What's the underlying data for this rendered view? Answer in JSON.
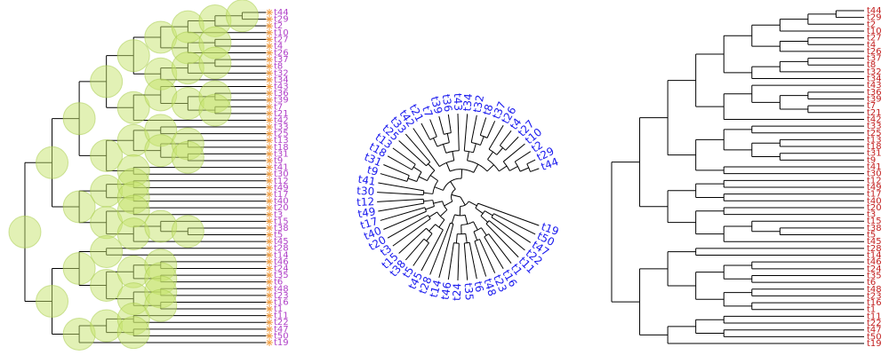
{
  "panel_left": {
    "tip_color": "#b041c8",
    "node_color": "#c5e36b",
    "star_color": "#f2a24a",
    "tips": [
      "t44",
      "t29",
      "t2",
      "t10",
      "t27",
      "t4",
      "t26",
      "t37",
      "t8",
      "t32",
      "t34",
      "t43",
      "t36",
      "t39",
      "t7",
      "t21",
      "t42",
      "t33",
      "t25",
      "t13",
      "t18",
      "t31",
      "t9",
      "t41",
      "t30",
      "t12",
      "t49",
      "t17",
      "t40",
      "t20",
      "t3",
      "t15",
      "t38",
      "t5",
      "t45",
      "t28",
      "t14",
      "t46",
      "t24",
      "t35",
      "t6",
      "t48",
      "t23",
      "t16",
      "t1",
      "t11",
      "t22",
      "t47",
      "t50",
      "t19"
    ]
  },
  "panel_middle": {
    "tip_color": "#1a1aee",
    "tips": [
      "t44",
      "t29",
      "t2",
      "t10",
      "t27",
      "t4",
      "t26",
      "t37",
      "t8",
      "t32",
      "t34",
      "t43",
      "t36",
      "t39",
      "t7",
      "t21",
      "t42",
      "t33",
      "t25",
      "t13",
      "t18",
      "t31",
      "t9",
      "t41",
      "t30",
      "t12",
      "t49",
      "t17",
      "t40",
      "t20",
      "t3",
      "t15",
      "t38",
      "t5",
      "t45",
      "t28",
      "t14",
      "t46",
      "t24",
      "t35",
      "t6",
      "t48",
      "t23",
      "t16",
      "t1",
      "t11",
      "t22",
      "t47",
      "t50",
      "t19"
    ]
  },
  "panel_right": {
    "tip_color": "#c21f1f",
    "tips": [
      "t44",
      "t29",
      "t2",
      "t10",
      "t27",
      "t4",
      "t26",
      "t37",
      "t8",
      "t32",
      "t34",
      "t43",
      "t36",
      "t39",
      "t7",
      "t21",
      "t42",
      "t33",
      "t25",
      "t13",
      "t18",
      "t31",
      "t9",
      "t41",
      "t30",
      "t12",
      "t49",
      "t17",
      "t40",
      "t20",
      "t3",
      "t15",
      "t38",
      "t5",
      "t45",
      "t28",
      "t14",
      "t46",
      "t24",
      "t35",
      "t6",
      "t48",
      "t23",
      "t16",
      "t1",
      "t11",
      "t22",
      "t47",
      "t50",
      "t19"
    ]
  },
  "tree": [
    [
      [
        [
          [
            [
              [
                [
                  [
                    "t44",
                    "t29"
                  ],
                  "t2"
                ],
                "t10"
              ],
              [
                [
                  "t27",
                  "t4"
                ],
                "t26"
              ]
            ],
            [
              [
                [
                  "t37",
                  "t8"
                ],
                "t32"
              ],
              "t34"
            ]
          ],
          [
            [
              "t43",
              [
                [
                  "t36",
                  "t39"
                ],
                [
                  "t7",
                  "t21"
                ]
              ]
            ],
            "t42"
          ]
        ],
        [
          [
            [
              "t33",
              "t25"
            ],
            [
              [
                "t13",
                "t18"
              ],
              [
                "t31",
                "t9"
              ]
            ]
          ],
          [
            "t41",
            "t30"
          ]
        ]
      ],
      [
        [
          [
            "t12",
            "t49"
          ],
          [
            "t17",
            "t40"
          ]
        ],
        [
          [
            "t20",
            "t3"
          ],
          [
            [
              "t15",
              [
                "t38",
                "t5"
              ]
            ],
            "t45"
          ]
        ]
      ]
    ],
    [
      [
        [
          "t28",
          "t14"
        ],
        [
          [
            [
              "t46",
              "t24"
            ],
            [
              "t35",
              "t6"
            ]
          ],
          [
            [
              "t48",
              "t23"
            ],
            [
              "t16",
              "t1"
            ]
          ]
        ]
      ],
      [
        [
          [
            "t11",
            "t22"
          ],
          [
            "t47",
            "t50"
          ]
        ],
        "t19"
      ]
    ]
  ]
}
